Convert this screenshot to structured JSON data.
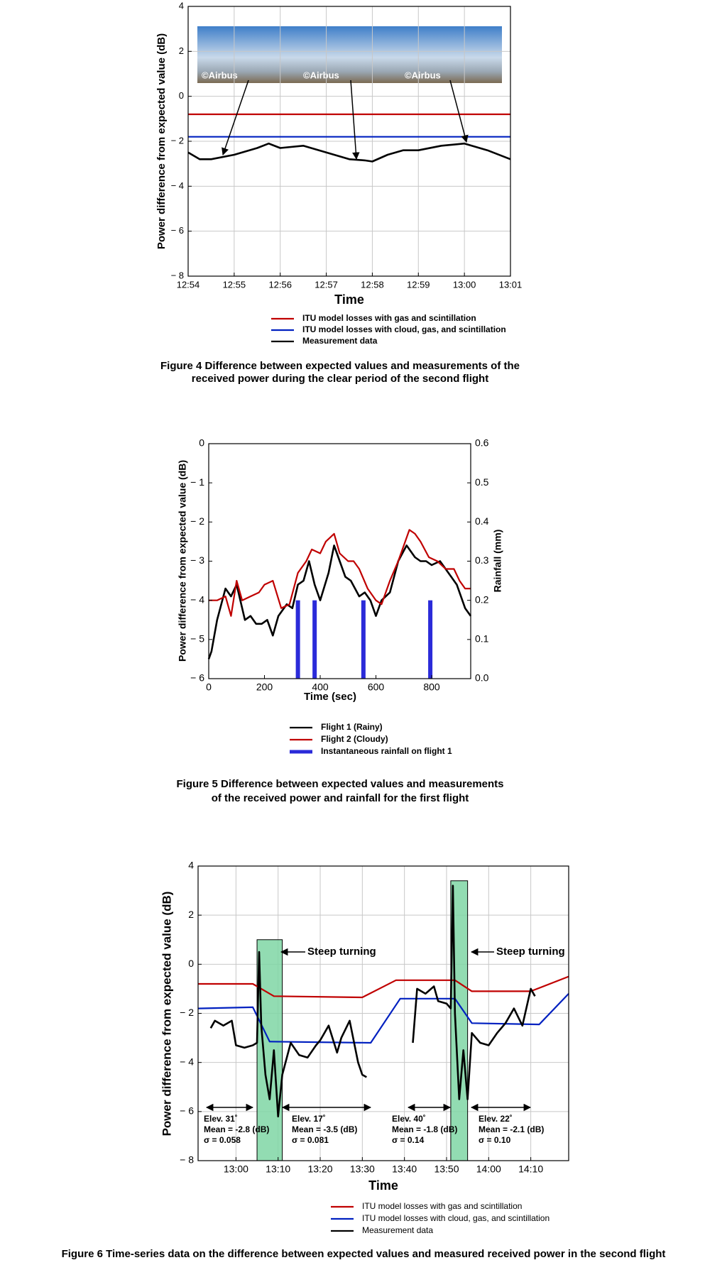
{
  "chart_data": [
    {
      "type": "line",
      "ylabel": "Power difference from expected value (dB)",
      "xlabel": "Time",
      "xlim": [
        "12:54",
        "13:01"
      ],
      "xticks": [
        "12:54",
        "12:55",
        "12:56",
        "12:57",
        "12:58",
        "12:59",
        "13:00",
        "13:01"
      ],
      "ylim": [
        -8,
        4
      ],
      "yticks": [
        4,
        2,
        0,
        {
          "value": -2,
          "label": "− 2"
        },
        {
          "value": -4,
          "label": "− 4"
        },
        {
          "value": -6,
          "label": "− 6"
        },
        {
          "value": -8,
          "label": "− 8"
        }
      ],
      "grid": true,
      "images": [
        "©Airbus",
        "©Airbus",
        "©Airbus"
      ],
      "series": [
        {
          "name": "ITU model losses with gas and scintillation",
          "color": "#c00000",
          "x": [
            "12:54",
            "13:01"
          ],
          "values": [
            -0.8,
            -0.8
          ]
        },
        {
          "name": "ITU model losses with cloud, gas, and scintillation",
          "color": "#0020c0",
          "x": [
            "12:54",
            "13:01"
          ],
          "values": [
            -1.8,
            -1.8
          ]
        },
        {
          "name": "Measurement data",
          "color": "#000000",
          "x": [
            "12:54",
            "12:54:15",
            "12:54:30",
            "12:55",
            "12:55:30",
            "12:55:45",
            "12:56",
            "12:56:30",
            "12:57",
            "12:57:30",
            "12:57:50",
            "12:58",
            "12:58:20",
            "12:58:40",
            "12:59",
            "12:59:30",
            "13:00",
            "13:00:30",
            "13:01"
          ],
          "values": [
            -2.5,
            -2.8,
            -2.8,
            -2.6,
            -2.3,
            -2.1,
            -2.3,
            -2.2,
            -2.5,
            -2.8,
            -2.85,
            -2.9,
            -2.6,
            -2.4,
            -2.4,
            -2.2,
            -2.1,
            -2.4,
            -2.8
          ]
        }
      ],
      "caption": [
        "Figure 4  Difference between expected values and measurements of the",
        "received power during the clear period of the second flight"
      ]
    },
    {
      "type": "line",
      "ylabel": "Power difference from expected value (dB)",
      "xlabel": "Time (sec)",
      "y2label": "Rainfall (mm)",
      "xlim": [
        0,
        940
      ],
      "xticks": [
        0,
        200,
        400,
        600,
        800
      ],
      "ylim": [
        -6,
        0
      ],
      "yticks": [
        0,
        {
          "value": -1,
          "label": "− 1"
        },
        {
          "value": -2,
          "label": "− 2"
        },
        {
          "value": -3,
          "label": "− 3"
        },
        {
          "value": -4,
          "label": "− 4"
        },
        {
          "value": -5,
          "label": "− 5"
        },
        {
          "value": -6,
          "label": "− 6"
        }
      ],
      "y2lim": [
        0,
        0.6
      ],
      "y2ticks": [
        {
          "value": 0,
          "label": "0.0"
        },
        0.1,
        0.2,
        0.3,
        0.4,
        0.5,
        0.6
      ],
      "grid": false,
      "series": [
        {
          "name": "Flight 1 (Rainy)",
          "color": "#000000",
          "x": [
            0,
            10,
            30,
            60,
            80,
            100,
            130,
            150,
            170,
            190,
            210,
            230,
            250,
            280,
            300,
            320,
            340,
            360,
            380,
            400,
            430,
            450,
            470,
            490,
            510,
            540,
            560,
            580,
            600,
            620,
            650,
            680,
            710,
            740,
            760,
            780,
            800,
            830,
            860,
            890,
            920,
            940
          ],
          "values": [
            -5.5,
            -5.3,
            -4.5,
            -3.7,
            -3.9,
            -3.6,
            -4.5,
            -4.4,
            -4.6,
            -4.6,
            -4.5,
            -4.9,
            -4.4,
            -4.1,
            -4.2,
            -3.6,
            -3.5,
            -3.0,
            -3.6,
            -4.0,
            -3.3,
            -2.6,
            -3.0,
            -3.4,
            -3.5,
            -3.9,
            -3.8,
            -4.0,
            -4.4,
            -4.0,
            -3.8,
            -3.0,
            -2.6,
            -2.9,
            -3.0,
            -3.0,
            -3.1,
            -3.0,
            -3.3,
            -3.6,
            -4.2,
            -4.4
          ]
        },
        {
          "name": "Flight 2 (Cloudy)",
          "color": "#c00000",
          "x": [
            0,
            30,
            60,
            80,
            100,
            120,
            150,
            180,
            200,
            230,
            260,
            290,
            320,
            350,
            370,
            400,
            420,
            450,
            470,
            500,
            520,
            540,
            570,
            600,
            620,
            650,
            680,
            700,
            720,
            740,
            760,
            790,
            820,
            850,
            880,
            900,
            920,
            940
          ],
          "values": [
            -4.0,
            -4.0,
            -3.9,
            -4.4,
            -3.5,
            -4.0,
            -3.9,
            -3.8,
            -3.6,
            -3.5,
            -4.2,
            -4.1,
            -3.3,
            -3.0,
            -2.7,
            -2.8,
            -2.5,
            -2.3,
            -2.8,
            -3.0,
            -3.0,
            -3.2,
            -3.7,
            -4.0,
            -4.1,
            -3.5,
            -3.0,
            -2.6,
            -2.2,
            -2.3,
            -2.5,
            -2.9,
            -3.0,
            -3.2,
            -3.2,
            -3.5,
            -3.7,
            -3.7
          ]
        },
        {
          "name": "Instantaneous rainfall on flight 1",
          "color": "#2b2bd9",
          "type": "bar",
          "axis": "y2",
          "x": [
            320,
            380,
            555,
            795
          ],
          "values": [
            0.2,
            0.2,
            0.2,
            0.2
          ]
        }
      ],
      "caption": [
        "Figure 5  Difference between expected values and measurements",
        "of the received power and rainfall for the first flight"
      ]
    },
    {
      "type": "line",
      "ylabel": "Power difference from expected value (dB)",
      "xlabel": "Time",
      "xlim": [
        "12:51",
        "14:19"
      ],
      "xticks": [
        "13:00",
        "13:10",
        "13:20",
        "13:30",
        "13:40",
        "13:50",
        "14:00",
        "14:10"
      ],
      "ylim": [
        -8,
        4
      ],
      "yticks": [
        4,
        2,
        0,
        {
          "value": -2,
          "label": "− 2"
        },
        {
          "value": -4,
          "label": "− 4"
        },
        {
          "value": -6,
          "label": "− 6"
        },
        {
          "value": -8,
          "label": "− 8"
        }
      ],
      "grid": true,
      "shaded_regions": [
        {
          "x0": "13:05",
          "x1": "13:11",
          "top": 1.0
        },
        {
          "x0": "13:51",
          "x1": "13:55",
          "top": 3.4
        }
      ],
      "shade_color": "#7fd6a4",
      "callouts": [
        "Steep turning",
        "Steep turning"
      ],
      "annotations": [
        {
          "lines": [
            "Elev. 31˚",
            "Mean = -2.8 (dB)",
            "σ = 0.058"
          ]
        },
        {
          "lines": [
            "Elev. 17˚",
            "Mean = -3.5 (dB)",
            "σ = 0.081"
          ]
        },
        {
          "lines": [
            "Elev. 40˚",
            "Mean = -1.8 (dB)",
            "σ = 0.14"
          ]
        },
        {
          "lines": [
            "Elev. 22˚",
            "Mean = -2.1 (dB)",
            "σ = 0.10"
          ]
        }
      ],
      "series": [
        {
          "name": "ITU model losses with gas and scintillation",
          "color": "#c00000",
          "x": [
            "12:51",
            "13:04",
            "13:09",
            "13:30",
            "13:38",
            "13:52",
            "13:56",
            "14:10",
            "14:19"
          ],
          "values": [
            -0.8,
            -0.8,
            -1.3,
            -1.35,
            -0.65,
            -0.65,
            -1.1,
            -1.1,
            -0.5
          ]
        },
        {
          "name": "ITU model losses with cloud, gas, and scintillation",
          "color": "#0020c0",
          "x": [
            "12:51",
            "13:04",
            "13:08",
            "13:32",
            "13:39",
            "13:52",
            "13:56",
            "14:12",
            "14:19"
          ],
          "values": [
            -1.8,
            -1.75,
            -3.15,
            -3.2,
            -1.4,
            -1.4,
            -2.4,
            -2.45,
            -1.2
          ]
        },
        {
          "name": "Measurement data",
          "color": "#000000",
          "x": [
            "12:54",
            "12:55",
            "12:57",
            "12:59",
            "13:00",
            "13:02",
            "13:04",
            "13:05",
            "13:05:30",
            "13:06",
            "13:07",
            "13:08",
            "13:09",
            "13:10",
            "13:11",
            "13:13",
            "13:15",
            "13:17",
            "13:19",
            "13:20",
            "13:22",
            "13:24",
            "13:25",
            "13:27",
            "13:29",
            "13:30",
            "13:31",
            "13:36",
            "13:42",
            "13:43",
            "13:45",
            "13:47",
            "13:48",
            "13:50",
            "13:51",
            "13:51:30",
            "13:52",
            "13:53",
            "13:54",
            "13:55",
            "13:56",
            "13:58",
            "14:00",
            "14:02",
            "14:04",
            "14:06",
            "14:08",
            "14:10",
            "14:11"
          ],
          "values": [
            -2.6,
            -2.3,
            -2.5,
            -2.3,
            -3.3,
            -3.4,
            -3.3,
            -3.2,
            0.5,
            -2.5,
            -4.5,
            -5.5,
            -3.5,
            -6.2,
            -4.5,
            -3.2,
            -3.7,
            -3.8,
            -3.3,
            -3.1,
            -2.5,
            -3.6,
            -3.0,
            -2.3,
            -4.0,
            -4.5,
            -4.6,
            null,
            -3.2,
            -1.0,
            -1.2,
            -0.9,
            -1.5,
            -1.6,
            -1.8,
            3.2,
            -2.0,
            -5.5,
            -3.5,
            -5.5,
            -2.8,
            -3.2,
            -3.3,
            -2.8,
            -2.4,
            -1.8,
            -2.5,
            -1.0,
            -1.3
          ]
        }
      ],
      "caption": [
        "Figure 6  Time-series data on the difference between expected values and measured received power in the second flight"
      ]
    }
  ]
}
